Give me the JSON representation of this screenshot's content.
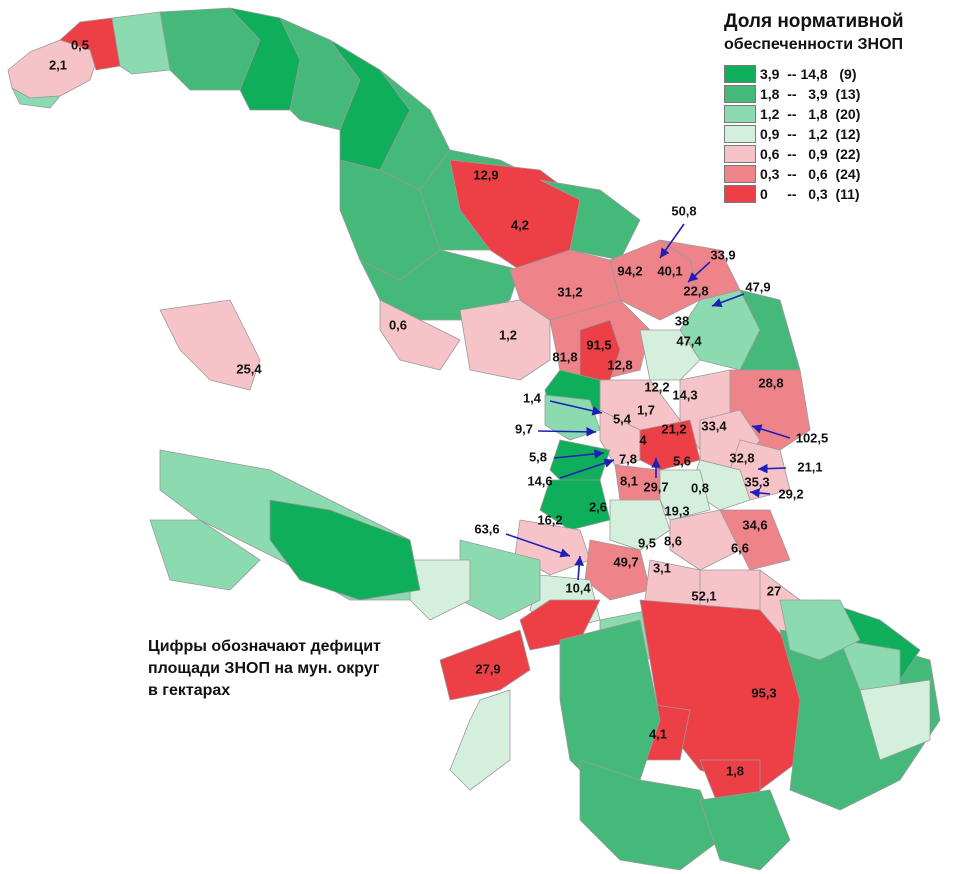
{
  "legend": {
    "title": "Доля нормативной",
    "subtitle": "обеспеченности ЗНОП",
    "classes": [
      {
        "label": "3,9  -- 14,8   (9)",
        "color": "#0fae5b"
      },
      {
        "label": "1,8  --   3,9  (13)",
        "color": "#45b97a"
      },
      {
        "label": "1,2  --   1,8  (20)",
        "color": "#8cdab0"
      },
      {
        "label": "0,9  --   1,2  (12)",
        "color": "#d4f0dd"
      },
      {
        "label": "0,6  --   0,9  (22)",
        "color": "#f6c4c8"
      },
      {
        "label": "0,3  --   0,6  (24)",
        "color": "#ee8489"
      },
      {
        "label": "0     --   0,3  (11)",
        "color": "#ec4046"
      }
    ]
  },
  "note": {
    "line1": "Цифры обозначают дефицит",
    "line2": "площади ЗНОП на мун. округ",
    "line3": "в гектарах"
  },
  "districts": [
    {
      "value": "0,5",
      "cls": 6
    },
    {
      "value": "2,1",
      "cls": 5
    },
    {
      "value": "12,9",
      "cls": 6
    },
    {
      "value": "4,2",
      "cls": 6
    },
    {
      "value": "50,8",
      "cls": 5
    },
    {
      "value": "33,9",
      "cls": 5
    },
    {
      "value": "94,2",
      "cls": 5
    },
    {
      "value": "40,1",
      "cls": 5
    },
    {
      "value": "22,8",
      "cls": 5
    },
    {
      "value": "47,9",
      "cls": 5
    },
    {
      "value": "31,2",
      "cls": 5
    },
    {
      "value": "38",
      "cls": 4
    },
    {
      "value": "0,6",
      "cls": 4
    },
    {
      "value": "1,2",
      "cls": 4
    },
    {
      "value": "47,4",
      "cls": 3
    },
    {
      "value": "91,5",
      "cls": 6
    },
    {
      "value": "81,8",
      "cls": 5
    },
    {
      "value": "12,8",
      "cls": 4
    },
    {
      "value": "25,4",
      "cls": 4
    },
    {
      "value": "28,8",
      "cls": 5
    },
    {
      "value": "12,2",
      "cls": 4
    },
    {
      "value": "14,3",
      "cls": 4
    },
    {
      "value": "1,4",
      "cls": 0
    },
    {
      "value": "1,7",
      "cls": 3
    },
    {
      "value": "5,4",
      "cls": 4
    },
    {
      "value": "9,7",
      "cls": 2
    },
    {
      "value": "33,4",
      "cls": 5
    },
    {
      "value": "102,5",
      "cls": 5
    },
    {
      "value": "21,2",
      "cls": 6
    },
    {
      "value": "4",
      "cls": 0
    },
    {
      "value": "5,8",
      "cls": 2
    },
    {
      "value": "7,8",
      "cls": 5
    },
    {
      "value": "5,6",
      "cls": 4
    },
    {
      "value": "32,8",
      "cls": 4
    },
    {
      "value": "21,1",
      "cls": 4
    },
    {
      "value": "14,6",
      "cls": 0
    },
    {
      "value": "8,1",
      "cls": 5
    },
    {
      "value": "29,7",
      "cls": 4
    },
    {
      "value": "0,8",
      "cls": 3
    },
    {
      "value": "35,3",
      "cls": 5
    },
    {
      "value": "29,2",
      "cls": 4
    },
    {
      "value": "2,6",
      "cls": 3
    },
    {
      "value": "19,3",
      "cls": 4
    },
    {
      "value": "16,2",
      "cls": 4
    },
    {
      "value": "34,6",
      "cls": 5
    },
    {
      "value": "63,6",
      "cls": 6
    },
    {
      "value": "9,5",
      "cls": 4
    },
    {
      "value": "8,6",
      "cls": 4
    },
    {
      "value": "6,6",
      "cls": 4
    },
    {
      "value": "49,7",
      "cls": 5
    },
    {
      "value": "3,1",
      "cls": 4
    },
    {
      "value": "10,4",
      "cls": 3
    },
    {
      "value": "27",
      "cls": 4
    },
    {
      "value": "52,1",
      "cls": 5
    },
    {
      "value": "27,9",
      "cls": 6
    },
    {
      "value": "95,3",
      "cls": 6
    },
    {
      "value": "4,1",
      "cls": 6
    },
    {
      "value": "1,8",
      "cls": 6
    }
  ]
}
